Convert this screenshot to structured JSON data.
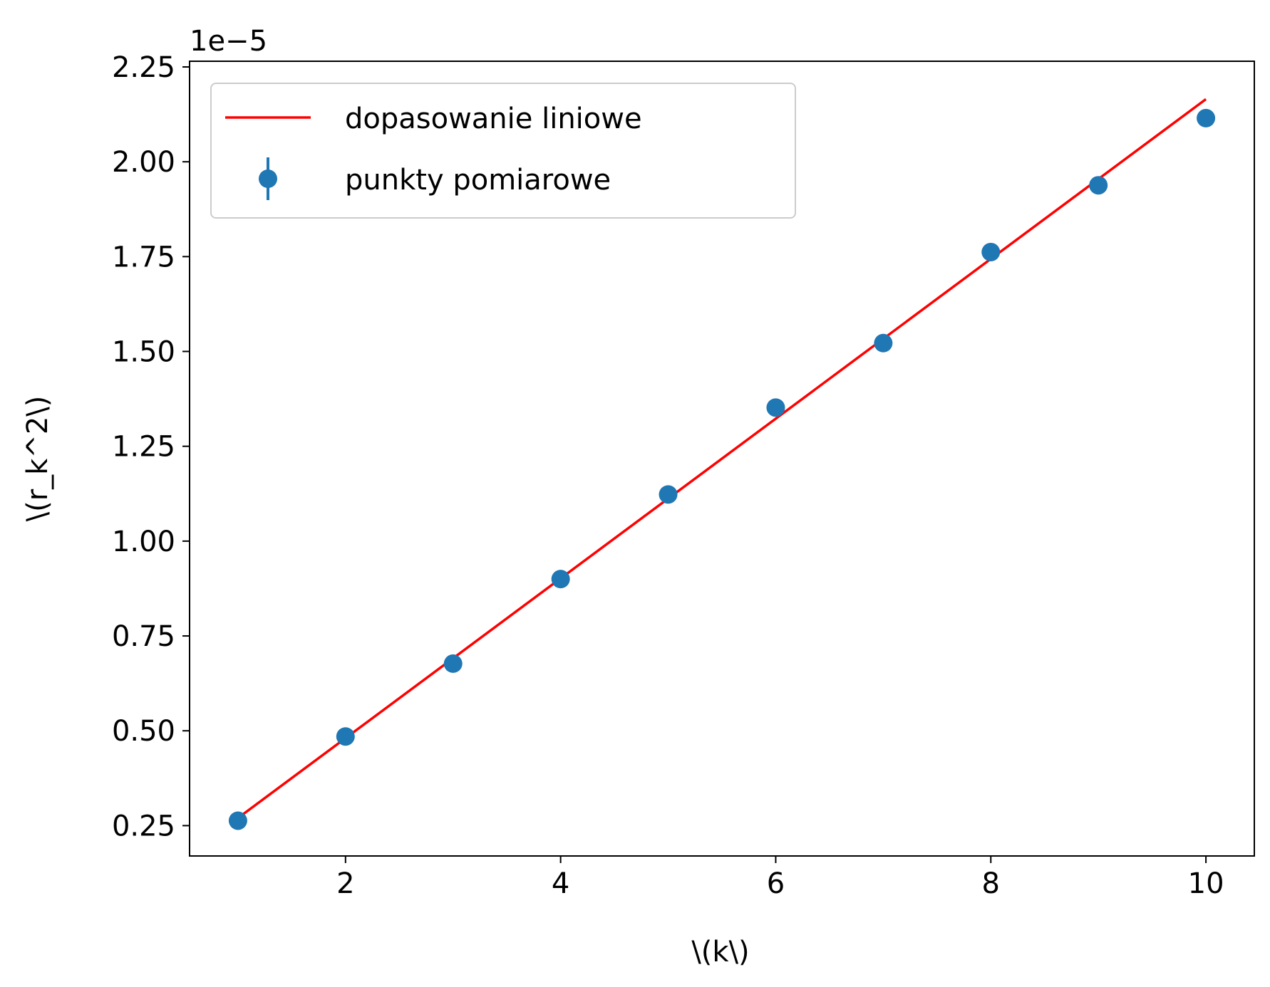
{
  "chart_data": {
    "type": "scatter",
    "xlabel": "\\(k\\)",
    "ylabel": "\\(r_k^2\\)",
    "y_offset_text": "1e−5",
    "y_scale": 1e-05,
    "xlim": [
      0.55,
      10.45
    ],
    "ylim": [
      0.17,
      2.265
    ],
    "x_ticks": [
      2,
      4,
      6,
      8,
      10
    ],
    "x_tick_labels": [
      "2",
      "4",
      "6",
      "8",
      "10"
    ],
    "y_ticks": [
      0.25,
      0.5,
      0.75,
      1.0,
      1.25,
      1.5,
      1.75,
      2.0,
      2.25
    ],
    "y_tick_labels": [
      "0.25",
      "0.50",
      "0.75",
      "1.00",
      "1.25",
      "1.50",
      "1.75",
      "2.00",
      "2.25"
    ],
    "grid": false,
    "legend": {
      "position": "top-left",
      "entries": [
        "dopasowanie liniowe",
        "punkty pomiarowe"
      ]
    },
    "series": [
      {
        "name": "punkty pomiarowe",
        "kind": "errorbar-scatter",
        "color": "#1f77b4",
        "x": [
          1,
          2,
          3,
          4,
          5,
          6,
          7,
          8,
          9,
          10
        ],
        "y": [
          0.263,
          0.485,
          0.677,
          0.9,
          1.123,
          1.352,
          1.522,
          1.762,
          1.938,
          2.115
        ]
      },
      {
        "name": "dopasowanie liniowe",
        "kind": "line",
        "color": "#ff0000",
        "x": [
          1,
          10
        ],
        "y": [
          0.27,
          2.165
        ]
      }
    ]
  }
}
